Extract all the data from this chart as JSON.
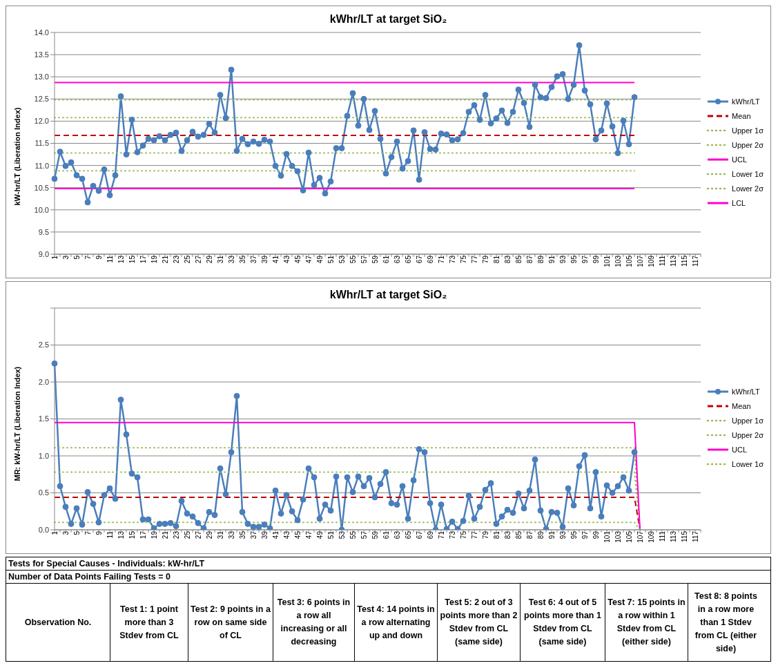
{
  "chart_data": [
    {
      "type": "line",
      "title": "kWhr/LT at target SiO₂",
      "ylabel": "kW-hr/LT (Liberation Index)",
      "categories": [
        "1",
        null,
        "3",
        null,
        "5",
        null,
        "7",
        null,
        "9",
        null,
        "11",
        null,
        "13",
        null,
        "15",
        null,
        "17",
        null,
        "19",
        null,
        "21",
        null,
        "23",
        null,
        "25",
        null,
        "27",
        null,
        "29",
        null,
        "31",
        null,
        "33",
        null,
        "35",
        null,
        "37",
        null,
        "39",
        null,
        "41",
        null,
        "43",
        null,
        "45",
        null,
        "47",
        null,
        "49",
        null,
        "51",
        null,
        "53",
        null,
        "55",
        null,
        "57",
        null,
        "59",
        null,
        "61",
        null,
        "63",
        null,
        "65",
        null,
        "67",
        null,
        "69",
        null,
        "71",
        null,
        "73",
        null,
        "75",
        null,
        "77",
        null,
        "79",
        null,
        "81",
        null,
        "83",
        null,
        "85",
        null,
        "87",
        null,
        "89",
        null,
        "91",
        null,
        "93",
        null,
        "95",
        null,
        "97",
        null,
        "99",
        null,
        "101",
        null,
        "103",
        null,
        "105",
        null,
        "107",
        null,
        "109",
        null,
        "111",
        null,
        "113",
        null,
        "115",
        null,
        "117",
        null
      ],
      "ylim": [
        9,
        14
      ],
      "yticks": [
        {
          "value": 9,
          "label": "9.0"
        },
        {
          "value": 9.5,
          "label": "9.5"
        },
        {
          "value": 10,
          "label": "10.0"
        },
        {
          "value": 10.5,
          "label": "10.5"
        },
        {
          "value": 11,
          "label": "11.0"
        },
        {
          "value": 11.5,
          "label": "11.5"
        },
        {
          "value": 12,
          "label": "12.0"
        },
        {
          "value": 12.5,
          "label": "12.5"
        },
        {
          "value": 13,
          "label": "13.0"
        },
        {
          "value": 13.5,
          "label": "13.5"
        },
        {
          "value": 14,
          "label": "14.0"
        }
      ],
      "grid": "y",
      "legend": "right",
      "series": [
        {
          "name": "kWhr/LT",
          "color": "#4a7ebb",
          "marker": "circle",
          "line_style": "solid",
          "values": [
            10.7,
            11.31,
            10.99,
            11.07,
            10.78,
            10.7,
            10.17,
            10.54,
            10.43,
            10.91,
            10.33,
            10.78,
            12.56,
            11.25,
            12.03,
            11.3,
            11.45,
            11.6,
            11.57,
            11.66,
            11.57,
            11.69,
            11.74,
            11.33,
            11.57,
            11.76,
            11.65,
            11.69,
            11.94,
            11.74,
            12.59,
            12.07,
            13.16,
            11.33,
            11.6,
            11.48,
            11.54,
            11.49,
            11.58,
            11.54,
            10.99,
            10.77,
            11.26,
            10.99,
            10.87,
            10.44,
            11.29,
            10.56,
            10.72,
            10.37,
            10.64,
            11.39,
            11.39,
            12.12,
            12.63,
            11.9,
            12.5,
            11.8,
            12.23,
            11.6,
            10.82,
            11.19,
            11.54,
            10.93,
            11.1,
            11.79,
            10.68,
            11.75,
            11.37,
            11.36,
            11.72,
            11.7,
            11.57,
            11.59,
            11.73,
            12.21,
            12.36,
            12.03,
            12.59,
            11.95,
            12.06,
            12.24,
            11.96,
            12.21,
            12.71,
            12.41,
            11.87,
            12.82,
            12.54,
            12.52,
            12.77,
            13.01,
            13.06,
            12.5,
            12.82,
            13.71,
            12.69,
            12.38,
            11.59,
            11.79,
            12.4,
            11.88,
            11.28,
            12.01,
            11.48,
            12.54,
            null,
            null,
            null,
            null,
            null,
            null,
            null,
            null,
            null,
            null,
            null,
            null
          ]
        },
        {
          "name": "Mean",
          "color": "#c00000",
          "marker": "none",
          "line_style": "dashed",
          "values": [
            11.68,
            11.68,
            11.68,
            11.68,
            11.68,
            11.68,
            11.68,
            11.68,
            11.68,
            11.68,
            11.68,
            11.68,
            11.68,
            11.68,
            11.68,
            11.68,
            11.68,
            11.68,
            11.68,
            11.68,
            11.68,
            11.68,
            11.68,
            11.68,
            11.68,
            11.68,
            11.68,
            11.68,
            11.68,
            11.68,
            11.68,
            11.68,
            11.68,
            11.68,
            11.68,
            11.68,
            11.68,
            11.68,
            11.68,
            11.68,
            11.68,
            11.68,
            11.68,
            11.68,
            11.68,
            11.68,
            11.68,
            11.68,
            11.68,
            11.68,
            11.68,
            11.68,
            11.68,
            11.68,
            11.68,
            11.68,
            11.68,
            11.68,
            11.68,
            11.68,
            11.68,
            11.68,
            11.68,
            11.68,
            11.68,
            11.68,
            11.68,
            11.68,
            11.68,
            11.68,
            11.68,
            11.68,
            11.68,
            11.68,
            11.68,
            11.68,
            11.68,
            11.68,
            11.68,
            11.68,
            11.68,
            11.68,
            11.68,
            11.68,
            11.68,
            11.68,
            11.68,
            11.68,
            11.68,
            11.68,
            11.68,
            11.68,
            11.68,
            11.68,
            11.68,
            11.68,
            11.68,
            11.68,
            11.68,
            11.68,
            11.68,
            11.68,
            11.68,
            11.68,
            11.68,
            11.68,
            null,
            null,
            null,
            null,
            null,
            null,
            null,
            null,
            null,
            null,
            null,
            null
          ]
        },
        {
          "name": "Upper 1σ",
          "color": "#9bbb59",
          "marker": "none",
          "line_style": "dotted",
          "values": [
            12.08,
            12.08,
            12.08,
            12.08,
            12.08,
            12.08,
            12.08,
            12.08,
            12.08,
            12.08,
            12.08,
            12.08,
            12.08,
            12.08,
            12.08,
            12.08,
            12.08,
            12.08,
            12.08,
            12.08,
            12.08,
            12.08,
            12.08,
            12.08,
            12.08,
            12.08,
            12.08,
            12.08,
            12.08,
            12.08,
            12.08,
            12.08,
            12.08,
            12.08,
            12.08,
            12.08,
            12.08,
            12.08,
            12.08,
            12.08,
            12.08,
            12.08,
            12.08,
            12.08,
            12.08,
            12.08,
            12.08,
            12.08,
            12.08,
            12.08,
            12.08,
            12.08,
            12.08,
            12.08,
            12.08,
            12.08,
            12.08,
            12.08,
            12.08,
            12.08,
            12.08,
            12.08,
            12.08,
            12.08,
            12.08,
            12.08,
            12.08,
            12.08,
            12.08,
            12.08,
            12.08,
            12.08,
            12.08,
            12.08,
            12.08,
            12.08,
            12.08,
            12.08,
            12.08,
            12.08,
            12.08,
            12.08,
            12.08,
            12.08,
            12.08,
            12.08,
            12.08,
            12.08,
            12.08,
            12.08,
            12.08,
            12.08,
            12.08,
            12.08,
            12.08,
            12.08,
            12.08,
            12.08,
            12.08,
            12.08,
            12.08,
            12.08,
            12.08,
            12.08,
            12.08,
            12.08,
            null,
            null,
            null,
            null,
            null,
            null,
            null,
            null,
            null,
            null,
            null,
            null
          ]
        },
        {
          "name": "Upper 2σ",
          "color": "#9bbb59",
          "marker": "none",
          "line_style": "dotted",
          "values": [
            12.48,
            12.48,
            12.48,
            12.48,
            12.48,
            12.48,
            12.48,
            12.48,
            12.48,
            12.48,
            12.48,
            12.48,
            12.48,
            12.48,
            12.48,
            12.48,
            12.48,
            12.48,
            12.48,
            12.48,
            12.48,
            12.48,
            12.48,
            12.48,
            12.48,
            12.48,
            12.48,
            12.48,
            12.48,
            12.48,
            12.48,
            12.48,
            12.48,
            12.48,
            12.48,
            12.48,
            12.48,
            12.48,
            12.48,
            12.48,
            12.48,
            12.48,
            12.48,
            12.48,
            12.48,
            12.48,
            12.48,
            12.48,
            12.48,
            12.48,
            12.48,
            12.48,
            12.48,
            12.48,
            12.48,
            12.48,
            12.48,
            12.48,
            12.48,
            12.48,
            12.48,
            12.48,
            12.48,
            12.48,
            12.48,
            12.48,
            12.48,
            12.48,
            12.48,
            12.48,
            12.48,
            12.48,
            12.48,
            12.48,
            12.48,
            12.48,
            12.48,
            12.48,
            12.48,
            12.48,
            12.48,
            12.48,
            12.48,
            12.48,
            12.48,
            12.48,
            12.48,
            12.48,
            12.48,
            12.48,
            12.48,
            12.48,
            12.48,
            12.48,
            12.48,
            12.48,
            12.48,
            12.48,
            12.48,
            12.48,
            12.48,
            12.48,
            12.48,
            12.48,
            12.48,
            12.48,
            null,
            null,
            null,
            null,
            null,
            null,
            null,
            null,
            null,
            null,
            null,
            null
          ]
        },
        {
          "name": "UCL",
          "color": "#ff00cc",
          "marker": "none",
          "line_style": "solid",
          "values": [
            12.87,
            12.87,
            12.87,
            12.87,
            12.87,
            12.87,
            12.87,
            12.87,
            12.87,
            12.87,
            12.87,
            12.87,
            12.87,
            12.87,
            12.87,
            12.87,
            12.87,
            12.87,
            12.87,
            12.87,
            12.87,
            12.87,
            12.87,
            12.87,
            12.87,
            12.87,
            12.87,
            12.87,
            12.87,
            12.87,
            12.87,
            12.87,
            12.87,
            12.87,
            12.87,
            12.87,
            12.87,
            12.87,
            12.87,
            12.87,
            12.87,
            12.87,
            12.87,
            12.87,
            12.87,
            12.87,
            12.87,
            12.87,
            12.87,
            12.87,
            12.87,
            12.87,
            12.87,
            12.87,
            12.87,
            12.87,
            12.87,
            12.87,
            12.87,
            12.87,
            12.87,
            12.87,
            12.87,
            12.87,
            12.87,
            12.87,
            12.87,
            12.87,
            12.87,
            12.87,
            12.87,
            12.87,
            12.87,
            12.87,
            12.87,
            12.87,
            12.87,
            12.87,
            12.87,
            12.87,
            12.87,
            12.87,
            12.87,
            12.87,
            12.87,
            12.87,
            12.87,
            12.87,
            12.87,
            12.87,
            12.87,
            12.87,
            12.87,
            12.87,
            12.87,
            12.87,
            12.87,
            12.87,
            12.87,
            12.87,
            12.87,
            12.87,
            12.87,
            12.87,
            12.87,
            12.87,
            null,
            null,
            null,
            null,
            null,
            null,
            null,
            null,
            null,
            null,
            null,
            null
          ]
        },
        {
          "name": "Lower 1σ",
          "color": "#9bbb59",
          "marker": "none",
          "line_style": "dotted",
          "values": [
            11.28,
            11.28,
            11.28,
            11.28,
            11.28,
            11.28,
            11.28,
            11.28,
            11.28,
            11.28,
            11.28,
            11.28,
            11.28,
            11.28,
            11.28,
            11.28,
            11.28,
            11.28,
            11.28,
            11.28,
            11.28,
            11.28,
            11.28,
            11.28,
            11.28,
            11.28,
            11.28,
            11.28,
            11.28,
            11.28,
            11.28,
            11.28,
            11.28,
            11.28,
            11.28,
            11.28,
            11.28,
            11.28,
            11.28,
            11.28,
            11.28,
            11.28,
            11.28,
            11.28,
            11.28,
            11.28,
            11.28,
            11.28,
            11.28,
            11.28,
            11.28,
            11.28,
            11.28,
            11.28,
            11.28,
            11.28,
            11.28,
            11.28,
            11.28,
            11.28,
            11.28,
            11.28,
            11.28,
            11.28,
            11.28,
            11.28,
            11.28,
            11.28,
            11.28,
            11.28,
            11.28,
            11.28,
            11.28,
            11.28,
            11.28,
            11.28,
            11.28,
            11.28,
            11.28,
            11.28,
            11.28,
            11.28,
            11.28,
            11.28,
            11.28,
            11.28,
            11.28,
            11.28,
            11.28,
            11.28,
            11.28,
            11.28,
            11.28,
            11.28,
            11.28,
            11.28,
            11.28,
            11.28,
            11.28,
            11.28,
            11.28,
            11.28,
            11.28,
            11.28,
            11.28,
            11.28,
            null,
            null,
            null,
            null,
            null,
            null,
            null,
            null,
            null,
            null,
            null,
            null
          ]
        },
        {
          "name": "Lower 2σ",
          "color": "#9bbb59",
          "marker": "none",
          "line_style": "dotted",
          "values": [
            10.88,
            10.88,
            10.88,
            10.88,
            10.88,
            10.88,
            10.88,
            10.88,
            10.88,
            10.88,
            10.88,
            10.88,
            10.88,
            10.88,
            10.88,
            10.88,
            10.88,
            10.88,
            10.88,
            10.88,
            10.88,
            10.88,
            10.88,
            10.88,
            10.88,
            10.88,
            10.88,
            10.88,
            10.88,
            10.88,
            10.88,
            10.88,
            10.88,
            10.88,
            10.88,
            10.88,
            10.88,
            10.88,
            10.88,
            10.88,
            10.88,
            10.88,
            10.88,
            10.88,
            10.88,
            10.88,
            10.88,
            10.88,
            10.88,
            10.88,
            10.88,
            10.88,
            10.88,
            10.88,
            10.88,
            10.88,
            10.88,
            10.88,
            10.88,
            10.88,
            10.88,
            10.88,
            10.88,
            10.88,
            10.88,
            10.88,
            10.88,
            10.88,
            10.88,
            10.88,
            10.88,
            10.88,
            10.88,
            10.88,
            10.88,
            10.88,
            10.88,
            10.88,
            10.88,
            10.88,
            10.88,
            10.88,
            10.88,
            10.88,
            10.88,
            10.88,
            10.88,
            10.88,
            10.88,
            10.88,
            10.88,
            10.88,
            10.88,
            10.88,
            10.88,
            10.88,
            10.88,
            10.88,
            10.88,
            10.88,
            10.88,
            10.88,
            10.88,
            10.88,
            10.88,
            10.88,
            null,
            null,
            null,
            null,
            null,
            null,
            null,
            null,
            null,
            null,
            null,
            null
          ]
        },
        {
          "name": "LCL",
          "color": "#ff00cc",
          "marker": "none",
          "line_style": "solid",
          "values": [
            10.48,
            10.48,
            10.48,
            10.48,
            10.48,
            10.48,
            10.48,
            10.48,
            10.48,
            10.48,
            10.48,
            10.48,
            10.48,
            10.48,
            10.48,
            10.48,
            10.48,
            10.48,
            10.48,
            10.48,
            10.48,
            10.48,
            10.48,
            10.48,
            10.48,
            10.48,
            10.48,
            10.48,
            10.48,
            10.48,
            10.48,
            10.48,
            10.48,
            10.48,
            10.48,
            10.48,
            10.48,
            10.48,
            10.48,
            10.48,
            10.48,
            10.48,
            10.48,
            10.48,
            10.48,
            10.48,
            10.48,
            10.48,
            10.48,
            10.48,
            10.48,
            10.48,
            10.48,
            10.48,
            10.48,
            10.48,
            10.48,
            10.48,
            10.48,
            10.48,
            10.48,
            10.48,
            10.48,
            10.48,
            10.48,
            10.48,
            10.48,
            10.48,
            10.48,
            10.48,
            10.48,
            10.48,
            10.48,
            10.48,
            10.48,
            10.48,
            10.48,
            10.48,
            10.48,
            10.48,
            10.48,
            10.48,
            10.48,
            10.48,
            10.48,
            10.48,
            10.48,
            10.48,
            10.48,
            10.48,
            10.48,
            10.48,
            10.48,
            10.48,
            10.48,
            10.48,
            10.48,
            10.48,
            10.48,
            10.48,
            10.48,
            10.48,
            10.48,
            10.48,
            10.48,
            10.48,
            null,
            null,
            null,
            null,
            null,
            null,
            null,
            null,
            null,
            null,
            null,
            null
          ]
        }
      ]
    },
    {
      "type": "line",
      "title": "kWhr/LT at target SiO₂",
      "ylabel": "MR: kW-hr/LT (Liberation Index)",
      "categories": [
        "1",
        null,
        "3",
        null,
        "5",
        null,
        "7",
        null,
        "9",
        null,
        "11",
        null,
        "13",
        null,
        "15",
        null,
        "17",
        null,
        "19",
        null,
        "21",
        null,
        "23",
        null,
        "25",
        null,
        "27",
        null,
        "29",
        null,
        "31",
        null,
        "33",
        null,
        "35",
        null,
        "37",
        null,
        "39",
        null,
        "41",
        null,
        "43",
        null,
        "45",
        null,
        "47",
        null,
        "49",
        null,
        "51",
        null,
        "53",
        null,
        "55",
        null,
        "57",
        null,
        "59",
        null,
        "61",
        null,
        "63",
        null,
        "65",
        null,
        "67",
        null,
        "69",
        null,
        "71",
        null,
        "73",
        null,
        "75",
        null,
        "77",
        null,
        "79",
        null,
        "81",
        null,
        "83",
        null,
        "85",
        null,
        "87",
        null,
        "89",
        null,
        "91",
        null,
        "93",
        null,
        "95",
        null,
        "97",
        null,
        "99",
        null,
        "101",
        null,
        "103",
        null,
        "105",
        null,
        "107",
        null,
        "109",
        null,
        "111",
        null,
        "113",
        null,
        "115",
        null,
        "117",
        null
      ],
      "ylim": [
        0,
        3
      ],
      "yticks": [
        {
          "value": 0,
          "label": "0.0"
        },
        {
          "value": 0.5,
          "label": "0.5"
        },
        {
          "value": 1,
          "label": "1.0"
        },
        {
          "value": 1.5,
          "label": "1.5"
        },
        {
          "value": 2,
          "label": "2.0"
        },
        {
          "value": 2.5,
          "label": "2.5"
        },
        {
          "value": 3,
          "label": null
        }
      ],
      "grid": "y",
      "legend": "right",
      "series": [
        {
          "name": "kWhr/LT",
          "color": "#4a7ebb",
          "marker": "circle",
          "line_style": "solid",
          "values": [
            2.25,
            0.59,
            0.31,
            0.08,
            0.29,
            0.07,
            0.51,
            0.35,
            0.1,
            0.47,
            0.56,
            0.42,
            1.76,
            1.29,
            0.76,
            0.71,
            0.14,
            0.14,
            0.02,
            0.08,
            0.08,
            0.09,
            0.05,
            0.39,
            0.22,
            0.18,
            0.09,
            0.02,
            0.24,
            0.2,
            0.83,
            0.48,
            1.05,
            1.81,
            0.24,
            0.08,
            0.04,
            0.04,
            0.07,
            0.02,
            0.53,
            0.22,
            0.47,
            0.25,
            0.13,
            0.41,
            0.83,
            0.71,
            0.15,
            0.34,
            0.26,
            0.72,
            0.0,
            0.71,
            0.51,
            0.72,
            0.59,
            0.7,
            0.44,
            0.62,
            0.78,
            0.36,
            0.34,
            0.59,
            0.15,
            0.67,
            1.09,
            1.05,
            0.36,
            0.0,
            0.34,
            0.01,
            0.11,
            0.01,
            0.12,
            0.46,
            0.15,
            0.31,
            0.54,
            0.63,
            0.08,
            0.18,
            0.27,
            0.23,
            0.49,
            0.29,
            0.53,
            0.95,
            0.26,
            0.01,
            0.24,
            0.23,
            0.04,
            0.56,
            0.33,
            0.86,
            1.01,
            0.29,
            0.78,
            0.18,
            0.6,
            0.5,
            0.59,
            0.71,
            0.53,
            1.05,
            null,
            null,
            null,
            null,
            null,
            null,
            null,
            null,
            null,
            null,
            null,
            null
          ]
        },
        {
          "name": "Mean",
          "color": "#c00000",
          "marker": "none",
          "line_style": "dashed",
          "values": [
            0.44,
            0.44,
            0.44,
            0.44,
            0.44,
            0.44,
            0.44,
            0.44,
            0.44,
            0.44,
            0.44,
            0.44,
            0.44,
            0.44,
            0.44,
            0.44,
            0.44,
            0.44,
            0.44,
            0.44,
            0.44,
            0.44,
            0.44,
            0.44,
            0.44,
            0.44,
            0.44,
            0.44,
            0.44,
            0.44,
            0.44,
            0.44,
            0.44,
            0.44,
            0.44,
            0.44,
            0.44,
            0.44,
            0.44,
            0.44,
            0.44,
            0.44,
            0.44,
            0.44,
            0.44,
            0.44,
            0.44,
            0.44,
            0.44,
            0.44,
            0.44,
            0.44,
            0.44,
            0.44,
            0.44,
            0.44,
            0.44,
            0.44,
            0.44,
            0.44,
            0.44,
            0.44,
            0.44,
            0.44,
            0.44,
            0.44,
            0.44,
            0.44,
            0.44,
            0.44,
            0.44,
            0.44,
            0.44,
            0.44,
            0.44,
            0.44,
            0.44,
            0.44,
            0.44,
            0.44,
            0.44,
            0.44,
            0.44,
            0.44,
            0.44,
            0.44,
            0.44,
            0.44,
            0.44,
            0.44,
            0.44,
            0.44,
            0.44,
            0.44,
            0.44,
            0.44,
            0.44,
            0.44,
            0.44,
            0.44,
            0.44,
            0.44,
            0.44,
            0.44,
            0.44,
            0.44,
            0,
            null,
            null,
            null,
            null,
            null,
            null,
            null,
            null,
            null,
            null,
            null
          ]
        },
        {
          "name": "Upper 1σ",
          "color": "#9bbb59",
          "marker": "none",
          "line_style": "dotted",
          "values": [
            0.78,
            0.78,
            0.78,
            0.78,
            0.78,
            0.78,
            0.78,
            0.78,
            0.78,
            0.78,
            0.78,
            0.78,
            0.78,
            0.78,
            0.78,
            0.78,
            0.78,
            0.78,
            0.78,
            0.78,
            0.78,
            0.78,
            0.78,
            0.78,
            0.78,
            0.78,
            0.78,
            0.78,
            0.78,
            0.78,
            0.78,
            0.78,
            0.78,
            0.78,
            0.78,
            0.78,
            0.78,
            0.78,
            0.78,
            0.78,
            0.78,
            0.78,
            0.78,
            0.78,
            0.78,
            0.78,
            0.78,
            0.78,
            0.78,
            0.78,
            0.78,
            0.78,
            0.78,
            0.78,
            0.78,
            0.78,
            0.78,
            0.78,
            0.78,
            0.78,
            0.78,
            0.78,
            0.78,
            0.78,
            0.78,
            0.78,
            0.78,
            0.78,
            0.78,
            0.78,
            0.78,
            0.78,
            0.78,
            0.78,
            0.78,
            0.78,
            0.78,
            0.78,
            0.78,
            0.78,
            0.78,
            0.78,
            0.78,
            0.78,
            0.78,
            0.78,
            0.78,
            0.78,
            0.78,
            0.78,
            0.78,
            0.78,
            0.78,
            0.78,
            0.78,
            0.78,
            0.78,
            0.78,
            0.78,
            0.78,
            0.78,
            0.78,
            0.78,
            0.78,
            0.78,
            0.78,
            0,
            null,
            null,
            null,
            null,
            null,
            null,
            null,
            null,
            null,
            null,
            null
          ]
        },
        {
          "name": "Upper 2σ",
          "color": "#9bbb59",
          "marker": "none",
          "line_style": "dotted",
          "values": [
            1.11,
            1.11,
            1.11,
            1.11,
            1.11,
            1.11,
            1.11,
            1.11,
            1.11,
            1.11,
            1.11,
            1.11,
            1.11,
            1.11,
            1.11,
            1.11,
            1.11,
            1.11,
            1.11,
            1.11,
            1.11,
            1.11,
            1.11,
            1.11,
            1.11,
            1.11,
            1.11,
            1.11,
            1.11,
            1.11,
            1.11,
            1.11,
            1.11,
            1.11,
            1.11,
            1.11,
            1.11,
            1.11,
            1.11,
            1.11,
            1.11,
            1.11,
            1.11,
            1.11,
            1.11,
            1.11,
            1.11,
            1.11,
            1.11,
            1.11,
            1.11,
            1.11,
            1.11,
            1.11,
            1.11,
            1.11,
            1.11,
            1.11,
            1.11,
            1.11,
            1.11,
            1.11,
            1.11,
            1.11,
            1.11,
            1.11,
            1.11,
            1.11,
            1.11,
            1.11,
            1.11,
            1.11,
            1.11,
            1.11,
            1.11,
            1.11,
            1.11,
            1.11,
            1.11,
            1.11,
            1.11,
            1.11,
            1.11,
            1.11,
            1.11,
            1.11,
            1.11,
            1.11,
            1.11,
            1.11,
            1.11,
            1.11,
            1.11,
            1.11,
            1.11,
            1.11,
            1.11,
            1.11,
            1.11,
            1.11,
            1.11,
            1.11,
            1.11,
            1.11,
            1.11,
            1.11,
            0,
            null,
            null,
            null,
            null,
            null,
            null,
            null,
            null,
            null,
            null,
            null
          ]
        },
        {
          "name": "UCL",
          "color": "#ff00cc",
          "marker": "none",
          "line_style": "solid",
          "values": [
            1.45,
            1.45,
            1.45,
            1.45,
            1.45,
            1.45,
            1.45,
            1.45,
            1.45,
            1.45,
            1.45,
            1.45,
            1.45,
            1.45,
            1.45,
            1.45,
            1.45,
            1.45,
            1.45,
            1.45,
            1.45,
            1.45,
            1.45,
            1.45,
            1.45,
            1.45,
            1.45,
            1.45,
            1.45,
            1.45,
            1.45,
            1.45,
            1.45,
            1.45,
            1.45,
            1.45,
            1.45,
            1.45,
            1.45,
            1.45,
            1.45,
            1.45,
            1.45,
            1.45,
            1.45,
            1.45,
            1.45,
            1.45,
            1.45,
            1.45,
            1.45,
            1.45,
            1.45,
            1.45,
            1.45,
            1.45,
            1.45,
            1.45,
            1.45,
            1.45,
            1.45,
            1.45,
            1.45,
            1.45,
            1.45,
            1.45,
            1.45,
            1.45,
            1.45,
            1.45,
            1.45,
            1.45,
            1.45,
            1.45,
            1.45,
            1.45,
            1.45,
            1.45,
            1.45,
            1.45,
            1.45,
            1.45,
            1.45,
            1.45,
            1.45,
            1.45,
            1.45,
            1.45,
            1.45,
            1.45,
            1.45,
            1.45,
            1.45,
            1.45,
            1.45,
            1.45,
            1.45,
            1.45,
            1.45,
            1.45,
            1.45,
            1.45,
            1.45,
            1.45,
            1.45,
            1.45,
            0,
            null,
            null,
            null,
            null,
            null,
            null,
            null,
            null,
            null,
            null,
            null
          ]
        },
        {
          "name": "Lower 1σ",
          "color": "#9bbb59",
          "marker": "none",
          "line_style": "dotted",
          "values": [
            0.1,
            0.1,
            0.1,
            0.1,
            0.1,
            0.1,
            0.1,
            0.1,
            0.1,
            0.1,
            0.1,
            0.1,
            0.1,
            0.1,
            0.1,
            0.1,
            0.1,
            0.1,
            0.1,
            0.1,
            0.1,
            0.1,
            0.1,
            0.1,
            0.1,
            0.1,
            0.1,
            0.1,
            0.1,
            0.1,
            0.1,
            0.1,
            0.1,
            0.1,
            0.1,
            0.1,
            0.1,
            0.1,
            0.1,
            0.1,
            0.1,
            0.1,
            0.1,
            0.1,
            0.1,
            0.1,
            0.1,
            0.1,
            0.1,
            0.1,
            0.1,
            0.1,
            0.1,
            0.1,
            0.1,
            0.1,
            0.1,
            0.1,
            0.1,
            0.1,
            0.1,
            0.1,
            0.1,
            0.1,
            0.1,
            0.1,
            0.1,
            0.1,
            0.1,
            0.1,
            0.1,
            0.1,
            0.1,
            0.1,
            0.1,
            0.1,
            0.1,
            0.1,
            0.1,
            0.1,
            0.1,
            0.1,
            0.1,
            0.1,
            0.1,
            0.1,
            0.1,
            0.1,
            0.1,
            0.1,
            0.1,
            0.1,
            0.1,
            0.1,
            0.1,
            0.1,
            0.1,
            0.1,
            0.1,
            0.1,
            0.1,
            0.1,
            0.1,
            0.1,
            0.1,
            0.1,
            0,
            null,
            null,
            null,
            null,
            null,
            null,
            null,
            null,
            null,
            null,
            null
          ]
        }
      ]
    },
    {
      "type": "other",
      "title": "Tests for Special Causes - Individuals: kW-hr/LT",
      "subtitle": "Number of Data Points Failing Tests = 0",
      "annotations": [
        "Observation No.",
        "Test 1: 1 point more than 3 Stdev from CL",
        "Test 2: 9 points in a row on same side of CL",
        "Test 3: 6 points in a row all increasing or all decreasing",
        "Test 4: 14 points in a row alternating up and down",
        "Test 5: 2 out of 3 points more than 2 Stdev from CL (same side)",
        "Test 6: 4 out of 5 points more than 1 Stdev from CL (same side)",
        "Test 7: 15 points in a row within 1 Stdev from CL (either side)",
        "Test 8: 8 points in a row more than 1 Stdev from CL (either side)"
      ]
    }
  ]
}
